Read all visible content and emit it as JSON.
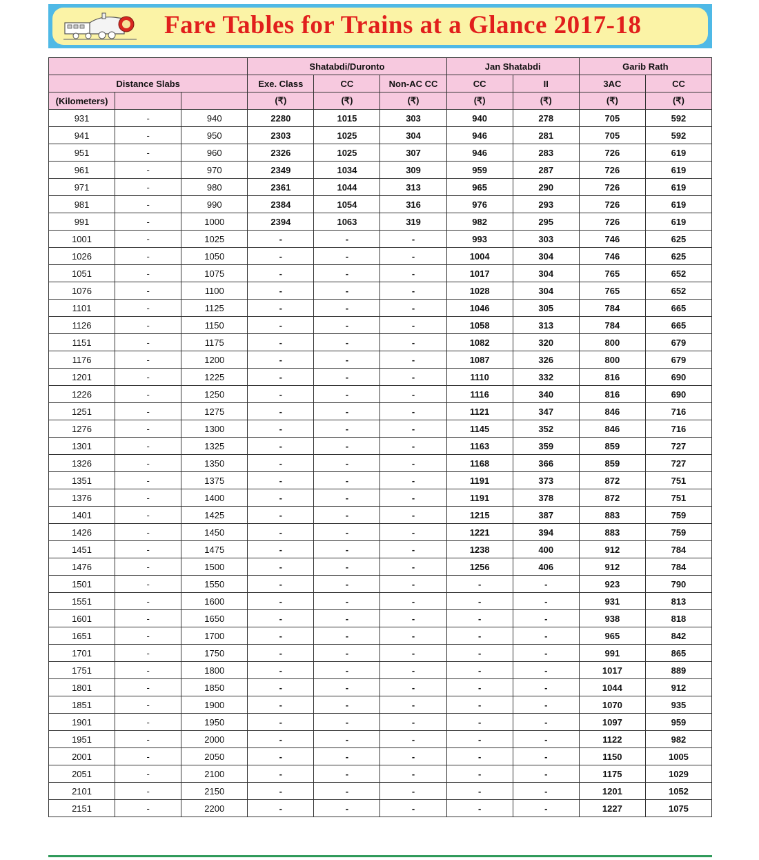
{
  "title": "Fare Tables for Trains at a Glance 2017-18",
  "header": {
    "groups": [
      "Shatabdi/Duronto",
      "Jan Shatabdi",
      "Garib Rath"
    ],
    "distance_label": "Distance Slabs",
    "unit_label": "(Kilometers)",
    "classes": [
      "Exe. Class",
      "CC",
      "Non-AC CC",
      "CC",
      "II",
      "3AC",
      "CC"
    ],
    "currency": "(₹)",
    "separator": "-"
  },
  "columns": [
    "from_km",
    "to_km",
    "shatabdi_exe",
    "shatabdi_cc",
    "shatabdi_nonac_cc",
    "jan_cc",
    "jan_ii",
    "garib_3ac",
    "garib_cc"
  ],
  "rows": [
    [
      "931",
      "940",
      "2280",
      "1015",
      "303",
      "940",
      "278",
      "705",
      "592"
    ],
    [
      "941",
      "950",
      "2303",
      "1025",
      "304",
      "946",
      "281",
      "705",
      "592"
    ],
    [
      "951",
      "960",
      "2326",
      "1025",
      "307",
      "946",
      "283",
      "726",
      "619"
    ],
    [
      "961",
      "970",
      "2349",
      "1034",
      "309",
      "959",
      "287",
      "726",
      "619"
    ],
    [
      "971",
      "980",
      "2361",
      "1044",
      "313",
      "965",
      "290",
      "726",
      "619"
    ],
    [
      "981",
      "990",
      "2384",
      "1054",
      "316",
      "976",
      "293",
      "726",
      "619"
    ],
    [
      "991",
      "1000",
      "2394",
      "1063",
      "319",
      "982",
      "295",
      "726",
      "619"
    ],
    [
      "1001",
      "1025",
      "-",
      "-",
      "-",
      "993",
      "303",
      "746",
      "625"
    ],
    [
      "1026",
      "1050",
      "-",
      "-",
      "-",
      "1004",
      "304",
      "746",
      "625"
    ],
    [
      "1051",
      "1075",
      "-",
      "-",
      "-",
      "1017",
      "304",
      "765",
      "652"
    ],
    [
      "1076",
      "1100",
      "-",
      "-",
      "-",
      "1028",
      "304",
      "765",
      "652"
    ],
    [
      "1101",
      "1125",
      "-",
      "-",
      "-",
      "1046",
      "305",
      "784",
      "665"
    ],
    [
      "1126",
      "1150",
      "-",
      "-",
      "-",
      "1058",
      "313",
      "784",
      "665"
    ],
    [
      "1151",
      "1175",
      "-",
      "-",
      "-",
      "1082",
      "320",
      "800",
      "679"
    ],
    [
      "1176",
      "1200",
      "-",
      "-",
      "-",
      "1087",
      "326",
      "800",
      "679"
    ],
    [
      "1201",
      "1225",
      "-",
      "-",
      "-",
      "1110",
      "332",
      "816",
      "690"
    ],
    [
      "1226",
      "1250",
      "-",
      "-",
      "-",
      "1116",
      "340",
      "816",
      "690"
    ],
    [
      "1251",
      "1275",
      "-",
      "-",
      "-",
      "1121",
      "347",
      "846",
      "716"
    ],
    [
      "1276",
      "1300",
      "-",
      "-",
      "-",
      "1145",
      "352",
      "846",
      "716"
    ],
    [
      "1301",
      "1325",
      "-",
      "-",
      "-",
      "1163",
      "359",
      "859",
      "727"
    ],
    [
      "1326",
      "1350",
      "-",
      "-",
      "-",
      "1168",
      "366",
      "859",
      "727"
    ],
    [
      "1351",
      "1375",
      "-",
      "-",
      "-",
      "1191",
      "373",
      "872",
      "751"
    ],
    [
      "1376",
      "1400",
      "-",
      "-",
      "-",
      "1191",
      "378",
      "872",
      "751"
    ],
    [
      "1401",
      "1425",
      "-",
      "-",
      "-",
      "1215",
      "387",
      "883",
      "759"
    ],
    [
      "1426",
      "1450",
      "-",
      "-",
      "-",
      "1221",
      "394",
      "883",
      "759"
    ],
    [
      "1451",
      "1475",
      "-",
      "-",
      "-",
      "1238",
      "400",
      "912",
      "784"
    ],
    [
      "1476",
      "1500",
      "-",
      "-",
      "-",
      "1256",
      "406",
      "912",
      "784"
    ],
    [
      "1501",
      "1550",
      "-",
      "-",
      "-",
      "-",
      "-",
      "923",
      "790"
    ],
    [
      "1551",
      "1600",
      "-",
      "-",
      "-",
      "-",
      "-",
      "931",
      "813"
    ],
    [
      "1601",
      "1650",
      "-",
      "-",
      "-",
      "-",
      "-",
      "938",
      "818"
    ],
    [
      "1651",
      "1700",
      "-",
      "-",
      "-",
      "-",
      "-",
      "965",
      "842"
    ],
    [
      "1701",
      "1750",
      "-",
      "-",
      "-",
      "-",
      "-",
      "991",
      "865"
    ],
    [
      "1751",
      "1800",
      "-",
      "-",
      "-",
      "-",
      "-",
      "1017",
      "889"
    ],
    [
      "1801",
      "1850",
      "-",
      "-",
      "-",
      "-",
      "-",
      "1044",
      "912"
    ],
    [
      "1851",
      "1900",
      "-",
      "-",
      "-",
      "-",
      "-",
      "1070",
      "935"
    ],
    [
      "1901",
      "1950",
      "-",
      "-",
      "-",
      "-",
      "-",
      "1097",
      "959"
    ],
    [
      "1951",
      "2000",
      "-",
      "-",
      "-",
      "-",
      "-",
      "1122",
      "982"
    ],
    [
      "2001",
      "2050",
      "-",
      "-",
      "-",
      "-",
      "-",
      "1150",
      "1005"
    ],
    [
      "2051",
      "2100",
      "-",
      "-",
      "-",
      "-",
      "-",
      "1175",
      "1029"
    ],
    [
      "2101",
      "2150",
      "-",
      "-",
      "-",
      "-",
      "-",
      "1201",
      "1052"
    ],
    [
      "2151",
      "2200",
      "-",
      "-",
      "-",
      "-",
      "-",
      "1227",
      "1075"
    ]
  ],
  "colors": {
    "banner_border": "#4fb9e6",
    "banner_fill": "#fbf3a6",
    "title": "#e11f1c",
    "header_fill": "#f7c9df",
    "footer_rule": "#2f9a5a"
  },
  "icons": {
    "logo": "steam-locomotive-icon"
  }
}
